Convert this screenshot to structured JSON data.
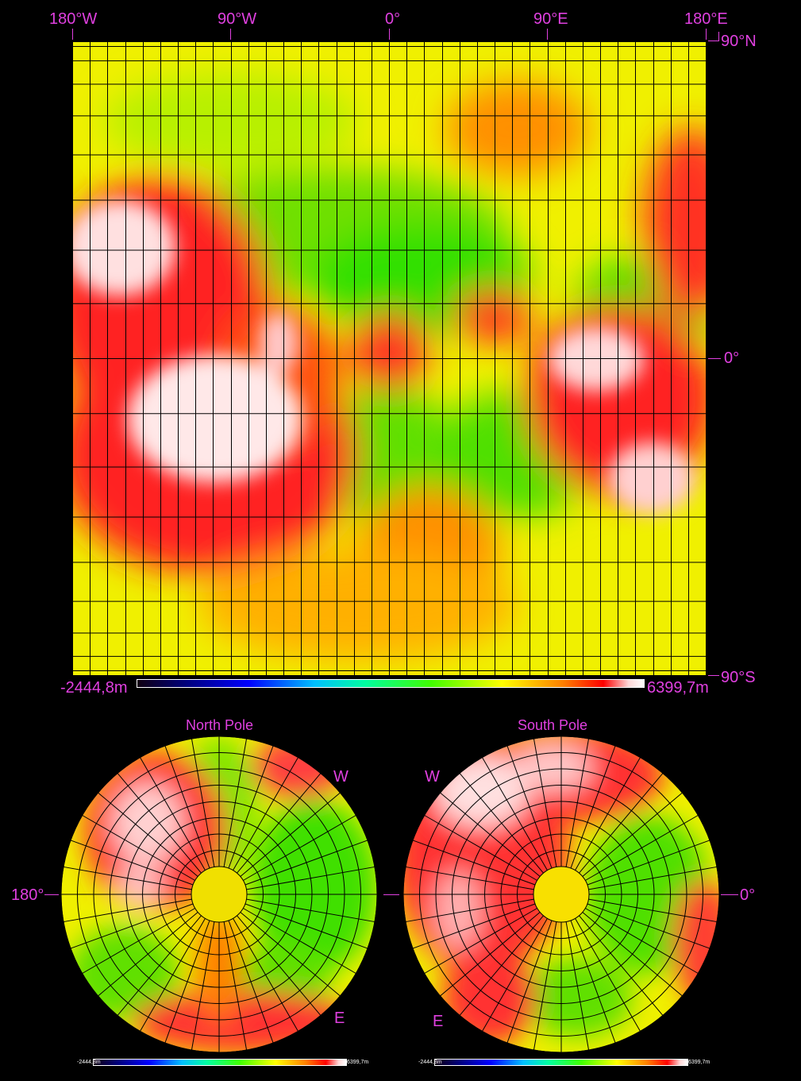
{
  "colors": {
    "label": "#e040e0",
    "background": "#000000",
    "grid": "#000000"
  },
  "cylindrical": {
    "lon_labels": [
      "180°W",
      "90°W",
      "0°",
      "90°E",
      "180°E"
    ],
    "lat_labels": [
      "90°N",
      "0°",
      "90°S"
    ],
    "colorbar": {
      "min": "-2444,8m",
      "max": "6399,7m"
    }
  },
  "north_pole": {
    "title": "North Pole",
    "left_label": "180°",
    "w_label": "W",
    "e_label": "E",
    "colorbar": {
      "min": "-2444,8m",
      "max": "6399,7m"
    }
  },
  "south_pole": {
    "title": "South Pole",
    "right_label": "0°",
    "w_label": "W",
    "e_label": "E",
    "colorbar": {
      "min": "-2444,8m",
      "max": "6399,7m"
    }
  }
}
